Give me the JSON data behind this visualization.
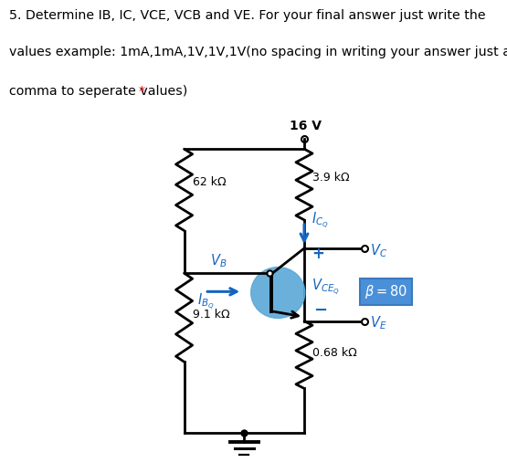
{
  "title_line1": "5. Determine IB, IC, VCE, VCB and VE. For your final answer just write the",
  "title_line2": "values example: 1mA,1mA,1V,1V,1V(no spacing in writing your answer just a",
  "title_line3_main": "comma to seperate values) ",
  "title_line3_star": "*",
  "title_color": "#000000",
  "star_color": "#cc0000",
  "bg_color": "#d0d0d0",
  "blue_color": "#1565c0",
  "transistor_circle_color": "#5ba8d8",
  "beta_box_facecolor": "#4a90d9",
  "beta_box_edgecolor": "#3a7abf",
  "vcc": "16 V",
  "r1": "62 kΩ",
  "r2": "9.1 kΩ",
  "rc": "3.9 kΩ",
  "re": "0.68 kΩ"
}
